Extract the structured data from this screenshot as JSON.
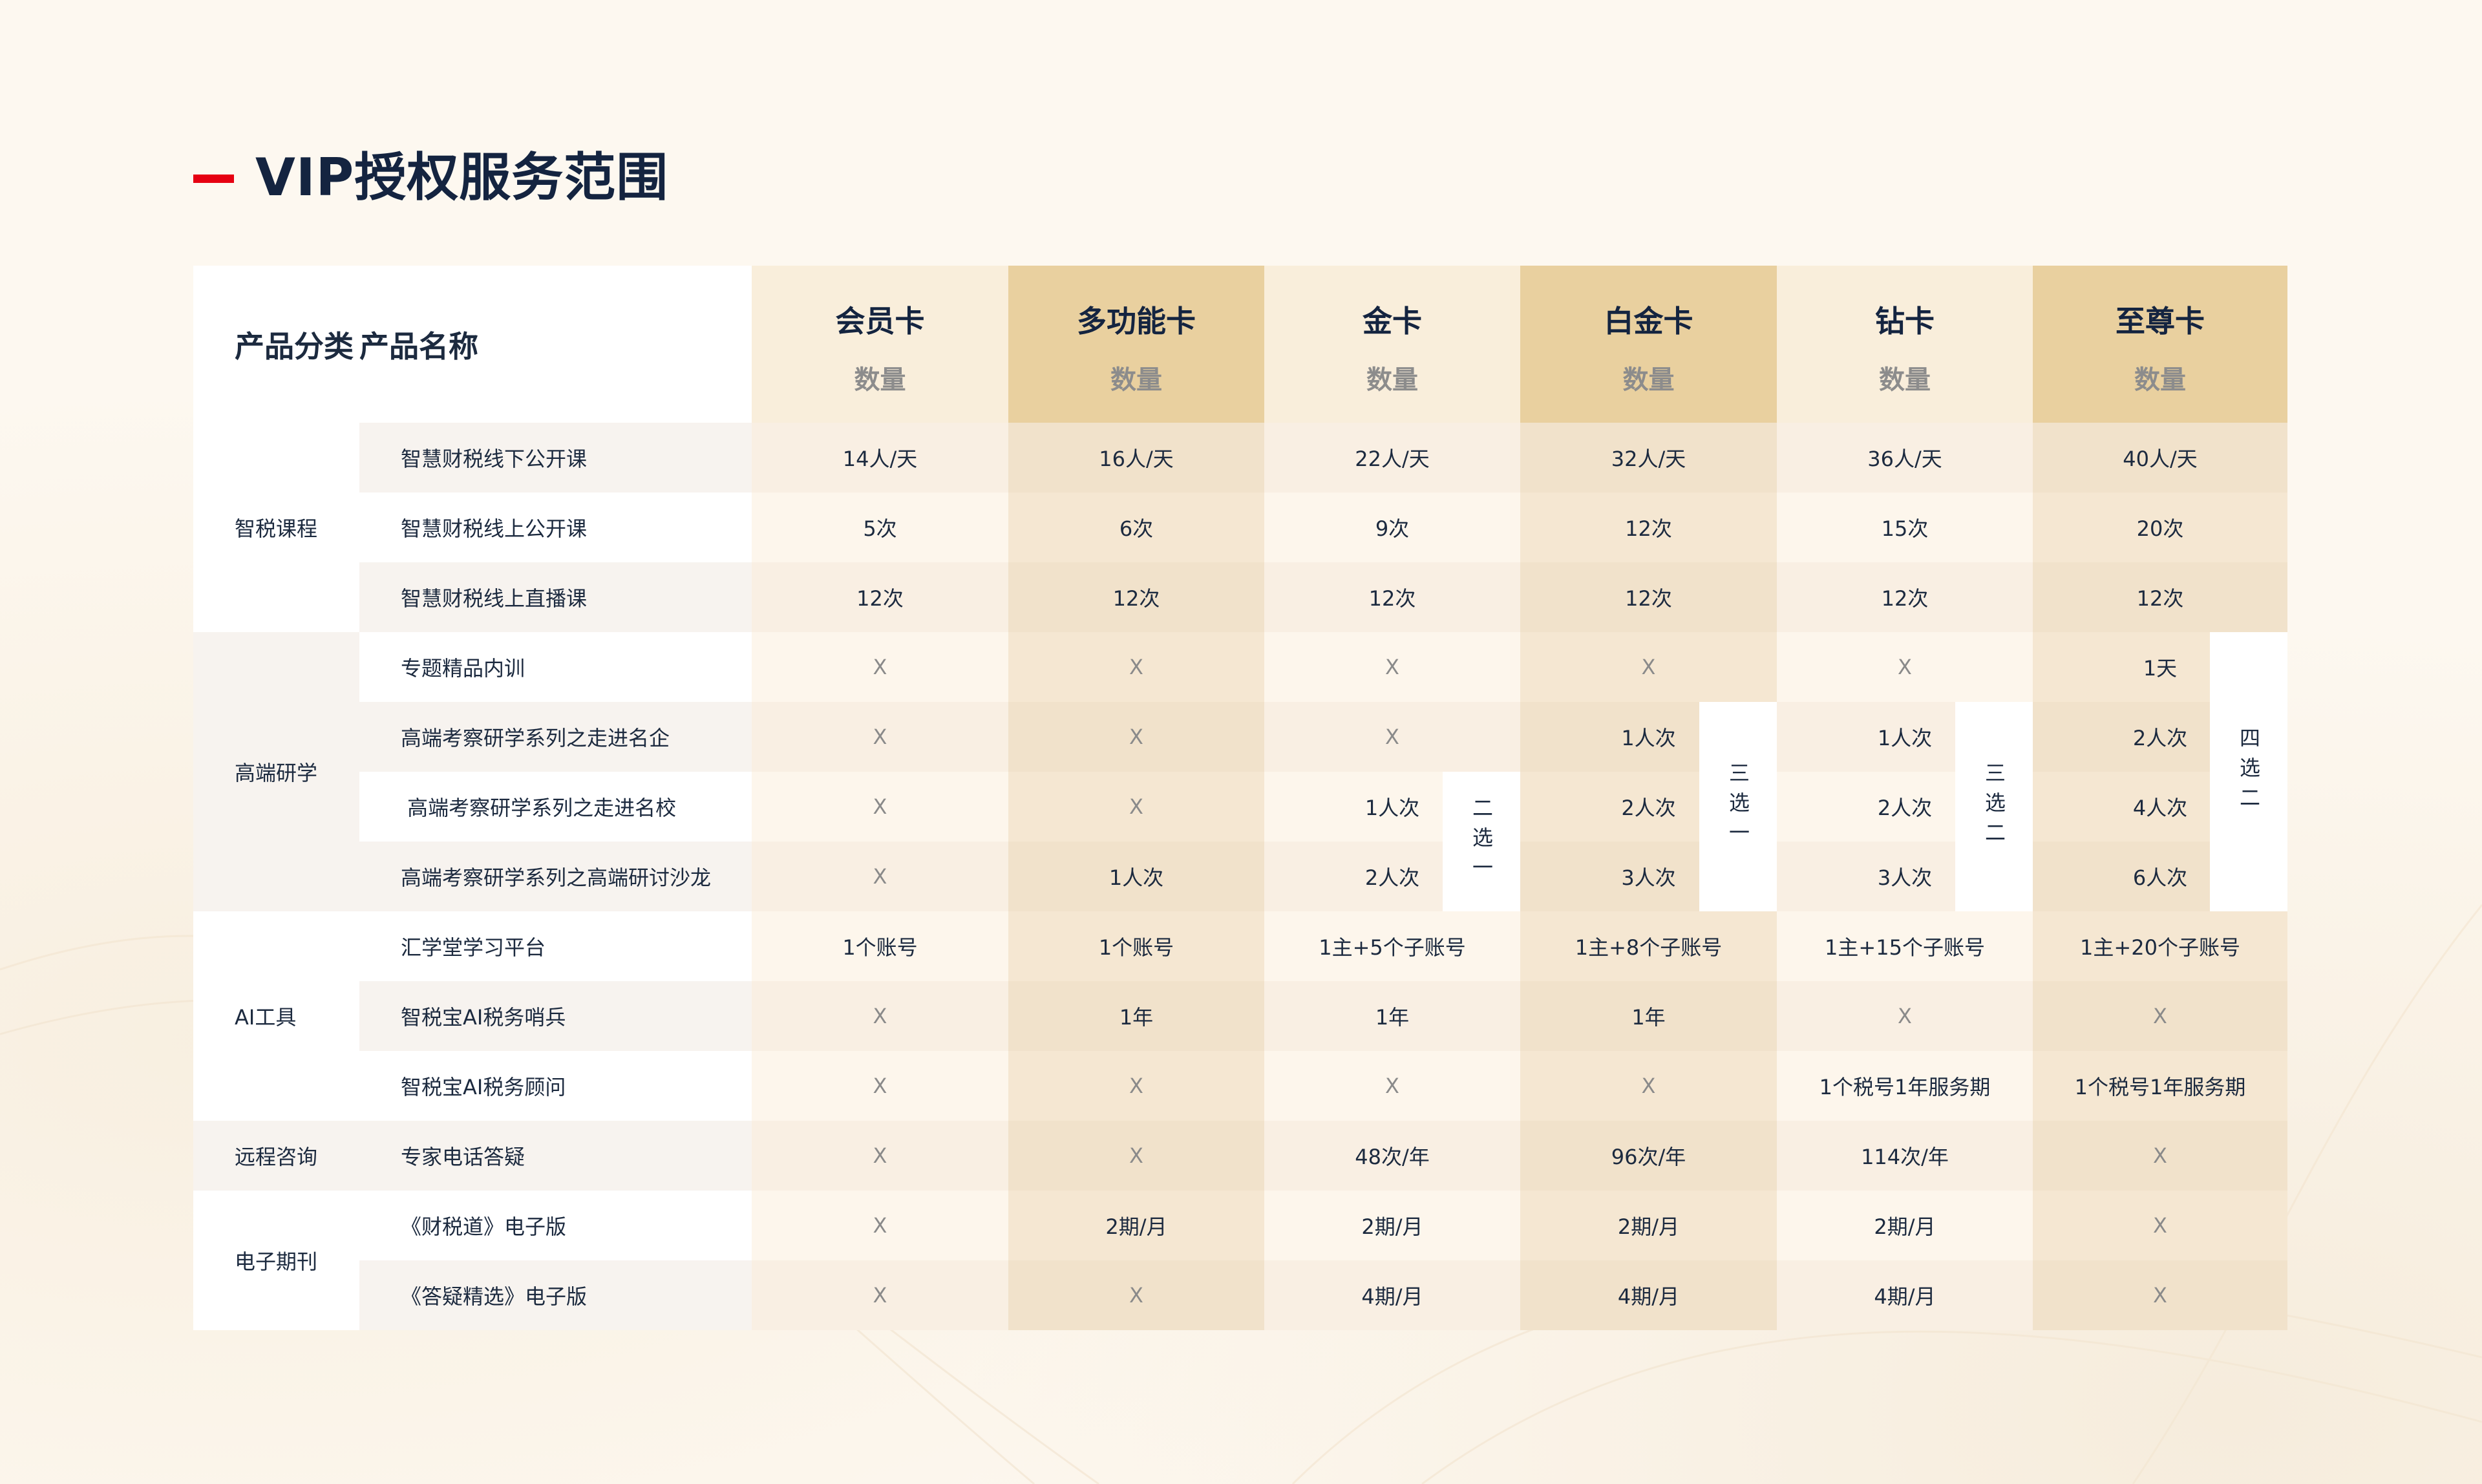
{
  "title": "VIP授权服务范围",
  "header": {
    "category_label": "产品分类",
    "name_label": "产品名称",
    "cards": [
      {
        "name": "会员卡",
        "sub": "数量"
      },
      {
        "name": "多功能卡",
        "sub": "数量"
      },
      {
        "name": "金卡",
        "sub": "数量"
      },
      {
        "name": "白金卡",
        "sub": "数量"
      },
      {
        "name": "钻卡",
        "sub": "数量"
      },
      {
        "name": "至尊卡",
        "sub": "数量"
      }
    ]
  },
  "categories": [
    {
      "label": "智税课程",
      "rows": 3
    },
    {
      "label": "高端研学",
      "rows": 4
    },
    {
      "label": "AI工具",
      "rows": 3
    },
    {
      "label": "远程咨询",
      "rows": 1
    },
    {
      "label": "电子期刊",
      "rows": 2
    }
  ],
  "rows": [
    {
      "name": "智慧财税线下公开课",
      "values": [
        "14人/天",
        "16人/天",
        "22人/天",
        "32人/天",
        "36人/天",
        "40人/天"
      ]
    },
    {
      "name": "智慧财税线上公开课",
      "values": [
        "5次",
        "6次",
        "9次",
        "12次",
        "15次",
        "20次"
      ]
    },
    {
      "name": "智慧财税线上直播课",
      "values": [
        "12次",
        "12次",
        "12次",
        "12次",
        "12次",
        "12次"
      ]
    },
    {
      "name": "专题精品内训",
      "values": [
        "X",
        "X",
        "X",
        "X",
        "X",
        "1天"
      ]
    },
    {
      "name": "高端考察研学系列之走进名企",
      "values": [
        "X",
        "X",
        "X",
        "1人次",
        "1人次",
        "2人次"
      ]
    },
    {
      "name": " 高端考察研学系列之走进名校",
      "values": [
        "X",
        "X",
        "1人次",
        "2人次",
        "2人次",
        "4人次"
      ]
    },
    {
      "name": "高端考察研学系列之高端研讨沙龙",
      "values": [
        "X",
        "1人次",
        "2人次",
        "3人次",
        "3人次",
        "6人次"
      ]
    },
    {
      "name": "汇学堂学习平台",
      "values": [
        "1个账号",
        "1个账号",
        "1主+5个子账号",
        "1主+8个子账号",
        "1主+15个子账号",
        "1主+20个子账号"
      ]
    },
    {
      "name": "智税宝AI税务哨兵",
      "values": [
        "X",
        "1年",
        "1年",
        "1年",
        "X",
        "X"
      ]
    },
    {
      "name": "智税宝AI税务顾问",
      "values": [
        "X",
        "X",
        "X",
        "X",
        "1个税号1年服务期",
        "1个税号1年服务期"
      ]
    },
    {
      "name": "专家电话答疑",
      "values": [
        "X",
        "X",
        "48次/年",
        "96次/年",
        "114次/年",
        "X"
      ]
    },
    {
      "name": "《财税道》电子版",
      "values": [
        "X",
        "2期/月",
        "2期/月",
        "2期/月",
        "2期/月",
        "X"
      ]
    },
    {
      "name": "《答疑精选》电子版",
      "values": [
        "X",
        "X",
        "4期/月",
        "4期/月",
        "4期/月",
        "X"
      ]
    }
  ],
  "choices": [
    {
      "card": "金卡",
      "label": "二选一"
    },
    {
      "card": "白金卡",
      "label": "三选一"
    },
    {
      "card": "钻卡",
      "label": "三选二"
    },
    {
      "card": "至尊卡",
      "label": "四选二"
    }
  ],
  "colors": {
    "accent": "#e60012",
    "text": "#1c2a3f",
    "gold_header": "#e9d09f",
    "light_header": "#f9eedb"
  }
}
